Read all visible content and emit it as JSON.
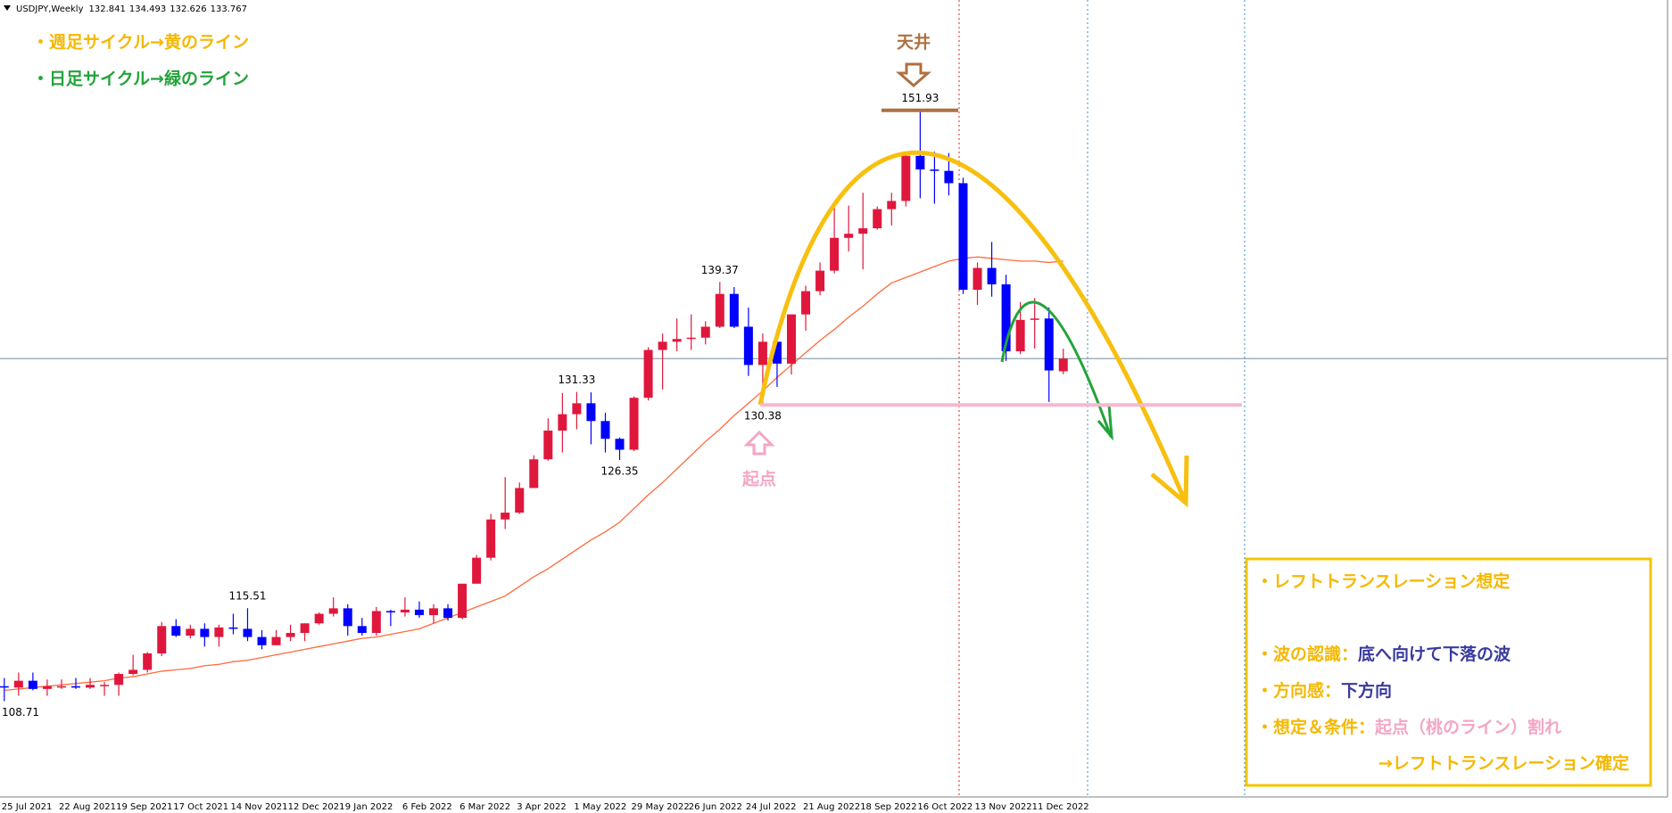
{
  "chart_data": {
    "type": "candlestick",
    "symbol": "USDJPY,Weekly",
    "categories": [
      "25 Jul 2021",
      null,
      null,
      null,
      "22 Aug 2021",
      null,
      null,
      null,
      "19 Sep 2021",
      null,
      null,
      null,
      "17 Oct 2021",
      null,
      null,
      null,
      "14 Nov 2021",
      null,
      null,
      null,
      "12 Dec 2021",
      null,
      null,
      null,
      "9 Jan 2022",
      null,
      null,
      null,
      "6 Feb 2022",
      null,
      null,
      null,
      "6 Mar 2022",
      null,
      null,
      null,
      "3 Apr 2022",
      null,
      null,
      null,
      "1 May 2022",
      null,
      null,
      null,
      "29 May 2022",
      null,
      null,
      null,
      "26 Jun 2022",
      null,
      null,
      null,
      "24 Jul 2022",
      null,
      null,
      null,
      "21 Aug 2022",
      null,
      null,
      null,
      "18 Sep 2022",
      null,
      null,
      null,
      "16 Oct 2022",
      null,
      null,
      null,
      "13 Nov 2022",
      null,
      null,
      null,
      "11 Dec 2022",
      null,
      null
    ],
    "open": [
      109.8,
      109.7,
      110.2,
      109.6,
      109.8,
      109.8,
      109.7,
      109.9,
      109.9,
      110.7,
      111.0,
      112.2,
      114.2,
      113.5,
      114.0,
      113.4,
      114.1,
      114.0,
      113.4,
      112.8,
      113.4,
      113.7,
      114.4,
      115.1,
      115.5,
      114.2,
      113.7,
      115.3,
      115.2,
      115.4,
      115.0,
      115.5,
      114.8,
      117.3,
      119.2,
      122.0,
      122.5,
      124.3,
      126.4,
      128.5,
      129.7,
      130.5,
      129.2,
      127.9,
      127.1,
      130.9,
      134.4,
      135.0,
      135.2,
      135.3,
      136.1,
      138.5,
      136.1,
      133.3,
      135.0,
      133.4,
      137.0,
      138.7,
      140.2,
      142.6,
      142.9,
      143.3,
      144.7,
      145.3,
      148.6,
      147.6,
      147.5,
      146.6,
      138.8,
      140.4,
      139.2,
      134.3,
      136.6,
      136.7,
      132.841
    ],
    "high": [
      110.4,
      110.8,
      110.8,
      110.3,
      110.3,
      110.4,
      110.4,
      110.1,
      110.8,
      112.1,
      112.3,
      114.5,
      114.7,
      114.3,
      114.4,
      114.3,
      115.1,
      115.51,
      113.9,
      113.9,
      114.3,
      114.4,
      115.2,
      116.3,
      115.8,
      114.8,
      115.6,
      115.4,
      116.3,
      116.0,
      115.8,
      115.8,
      117.3,
      119.4,
      122.4,
      125.1,
      124.7,
      126.7,
      129.4,
      131.25,
      131.33,
      131.3,
      129.8,
      128.0,
      131.0,
      134.6,
      135.6,
      136.7,
      137.0,
      136.5,
      139.37,
      139.0,
      137.5,
      135.6,
      135.6,
      137.0,
      139.1,
      140.8,
      144.99,
      144.96,
      145.9,
      144.9,
      145.9,
      148.9,
      151.93,
      148.9,
      148.8,
      147.0,
      140.8,
      142.3,
      139.9,
      137.9,
      138.2,
      137.5,
      134.493
    ],
    "low": [
      108.71,
      109.1,
      109.5,
      109.1,
      109.6,
      109.6,
      109.6,
      109.1,
      109.1,
      110.6,
      110.8,
      112.0,
      113.4,
      113.3,
      112.7,
      112.7,
      113.6,
      113.1,
      112.5,
      112.8,
      113.1,
      113.1,
      114.3,
      114.9,
      113.5,
      113.5,
      113.5,
      114.2,
      114.9,
      114.8,
      114.4,
      114.6,
      114.7,
      117.3,
      119.0,
      121.3,
      122.4,
      124.3,
      126.3,
      126.9,
      128.6,
      127.5,
      126.9,
      126.35,
      127.0,
      130.7,
      131.5,
      134.3,
      134.4,
      134.8,
      136.0,
      136.0,
      132.5,
      130.38,
      131.7,
      132.6,
      135.8,
      138.4,
      140.0,
      141.6,
      140.3,
      143.2,
      143.5,
      144.9,
      145.5,
      145.1,
      145.7,
      138.5,
      137.7,
      138.3,
      133.6,
      134.1,
      134.5,
      130.6,
      132.626
    ],
    "close": [
      109.7,
      110.2,
      109.6,
      109.8,
      109.8,
      109.7,
      109.9,
      109.9,
      110.7,
      111.0,
      112.2,
      114.2,
      113.5,
      114.0,
      113.4,
      114.1,
      114.0,
      113.4,
      112.8,
      113.4,
      113.7,
      114.4,
      115.1,
      115.5,
      114.2,
      113.7,
      115.3,
      115.2,
      115.4,
      115.0,
      115.5,
      114.8,
      117.3,
      119.2,
      122.0,
      122.5,
      124.3,
      126.4,
      128.5,
      129.7,
      130.5,
      129.2,
      127.9,
      127.1,
      130.9,
      134.4,
      135.0,
      135.2,
      135.3,
      136.1,
      138.5,
      136.1,
      133.3,
      135.0,
      133.4,
      137.0,
      138.7,
      140.2,
      142.6,
      142.9,
      143.3,
      144.7,
      145.3,
      148.6,
      147.6,
      147.5,
      146.6,
      138.8,
      140.4,
      139.2,
      134.3,
      136.6,
      136.7,
      132.9,
      133.767
    ],
    "up_color": "#e0173c",
    "down_color": "#0000ff",
    "ma": {
      "color": "#ff6a3d",
      "values": [
        109.5,
        109.6,
        109.7,
        109.8,
        109.9,
        110.0,
        110.1,
        110.2,
        110.4,
        110.5,
        110.7,
        110.9,
        111.0,
        111.1,
        111.3,
        111.4,
        111.6,
        111.7,
        111.9,
        112.1,
        112.3,
        112.5,
        112.7,
        112.9,
        113.1,
        113.3,
        113.4,
        113.6,
        113.8,
        114.0,
        114.4,
        114.8,
        115.2,
        115.6,
        116.0,
        116.4,
        117.1,
        117.8,
        118.4,
        119.1,
        119.8,
        120.5,
        121.1,
        121.8,
        122.8,
        123.8,
        124.7,
        125.7,
        126.7,
        127.7,
        128.6,
        129.6,
        130.5,
        131.4,
        132.4,
        133.3,
        134.2,
        135.1,
        135.9,
        136.8,
        137.6,
        138.5,
        139.3,
        139.7,
        140.1,
        140.5,
        140.9,
        141.1,
        141.2,
        141.1,
        141.0,
        140.9,
        140.9,
        140.8,
        140.9
      ]
    },
    "ylim": [
      101.7,
      160.0
    ],
    "annotations": {
      "weekly_note": "・週足サイクル→黄のライン",
      "daily_note": "・日足サイクル→緑のライン",
      "top_label": "天井",
      "origin_label": "起点",
      "info_box": {
        "title": "・レフトトランスレーション想定",
        "rows": [
          {
            "label": "・波の認識：",
            "value": "底へ向けて下落の波"
          },
          {
            "label": "・方向感：",
            "value": "下方向"
          },
          {
            "label": "・想定＆条件：",
            "value": "起点（桃のライン）割れ"
          }
        ],
        "conclusion": "→レフトトランスレーション確定"
      }
    }
  }
}
